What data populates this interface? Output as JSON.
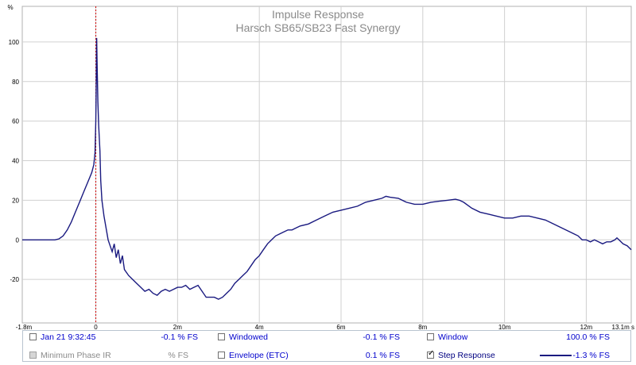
{
  "chart_data": {
    "type": "line",
    "title": "Impulse Response",
    "subtitle": "Harsch SB65/SB23 Fast Synergy",
    "ylabel": "%",
    "xlim": [
      -1.8,
      13.1
    ],
    "ylim": [
      -42,
      118
    ],
    "x_ticks": [
      "-1.8m",
      "0",
      "2m",
      "4m",
      "6m",
      "8m",
      "10m",
      "12m",
      "13.1m s"
    ],
    "x_tick_values": [
      -1.8,
      0,
      2,
      4,
      6,
      8,
      10,
      12,
      13.1
    ],
    "y_ticks": [
      "100",
      "80",
      "60",
      "40",
      "20",
      "0",
      "-20"
    ],
    "y_tick_values": [
      100,
      80,
      60,
      40,
      20,
      0,
      -20
    ],
    "grid": true,
    "marker_x": 0,
    "series": [
      {
        "color": "#1a1a80",
        "points": [
          [
            -1.8,
            0
          ],
          [
            -1.0,
            0
          ],
          [
            -0.9,
            0.5
          ],
          [
            -0.8,
            2
          ],
          [
            -0.7,
            5
          ],
          [
            -0.6,
            9
          ],
          [
            -0.5,
            14
          ],
          [
            -0.4,
            19
          ],
          [
            -0.3,
            24
          ],
          [
            -0.2,
            29
          ],
          [
            -0.1,
            34
          ],
          [
            -0.05,
            38
          ],
          [
            -0.02,
            44
          ],
          [
            0.0,
            60
          ],
          [
            0.01,
            80
          ],
          [
            0.02,
            102
          ],
          [
            0.03,
            90
          ],
          [
            0.05,
            70
          ],
          [
            0.07,
            58
          ],
          [
            0.1,
            45
          ],
          [
            0.12,
            30
          ],
          [
            0.15,
            20
          ],
          [
            0.2,
            12
          ],
          [
            0.25,
            6
          ],
          [
            0.3,
            0
          ],
          [
            0.35,
            -3
          ],
          [
            0.4,
            -6
          ],
          [
            0.45,
            -2
          ],
          [
            0.5,
            -9
          ],
          [
            0.55,
            -5
          ],
          [
            0.6,
            -12
          ],
          [
            0.65,
            -8
          ],
          [
            0.7,
            -15
          ],
          [
            0.8,
            -18
          ],
          [
            0.9,
            -20
          ],
          [
            1.0,
            -22
          ],
          [
            1.1,
            -24
          ],
          [
            1.2,
            -26
          ],
          [
            1.3,
            -25
          ],
          [
            1.4,
            -27
          ],
          [
            1.5,
            -28
          ],
          [
            1.6,
            -26
          ],
          [
            1.7,
            -25
          ],
          [
            1.8,
            -26
          ],
          [
            1.9,
            -25
          ],
          [
            2.0,
            -24
          ],
          [
            2.1,
            -24
          ],
          [
            2.2,
            -23
          ],
          [
            2.3,
            -25
          ],
          [
            2.4,
            -24
          ],
          [
            2.5,
            -23
          ],
          [
            2.6,
            -26
          ],
          [
            2.7,
            -29
          ],
          [
            2.8,
            -29
          ],
          [
            2.9,
            -29
          ],
          [
            3.0,
            -30
          ],
          [
            3.1,
            -29
          ],
          [
            3.2,
            -27
          ],
          [
            3.3,
            -25
          ],
          [
            3.4,
            -22
          ],
          [
            3.5,
            -20
          ],
          [
            3.6,
            -18
          ],
          [
            3.7,
            -16
          ],
          [
            3.8,
            -13
          ],
          [
            3.9,
            -10
          ],
          [
            4.0,
            -8
          ],
          [
            4.1,
            -5
          ],
          [
            4.2,
            -2
          ],
          [
            4.3,
            0
          ],
          [
            4.4,
            2
          ],
          [
            4.5,
            3
          ],
          [
            4.6,
            4
          ],
          [
            4.7,
            5
          ],
          [
            4.8,
            5
          ],
          [
            4.9,
            6
          ],
          [
            5.0,
            7
          ],
          [
            5.2,
            8
          ],
          [
            5.4,
            10
          ],
          [
            5.6,
            12
          ],
          [
            5.8,
            14
          ],
          [
            6.0,
            15
          ],
          [
            6.2,
            16
          ],
          [
            6.4,
            17
          ],
          [
            6.6,
            19
          ],
          [
            6.8,
            20
          ],
          [
            7.0,
            21
          ],
          [
            7.1,
            22
          ],
          [
            7.2,
            21.5
          ],
          [
            7.4,
            21
          ],
          [
            7.6,
            19
          ],
          [
            7.8,
            18
          ],
          [
            8.0,
            18
          ],
          [
            8.2,
            19
          ],
          [
            8.4,
            19.5
          ],
          [
            8.6,
            20
          ],
          [
            8.8,
            20.5
          ],
          [
            8.9,
            20
          ],
          [
            9.0,
            19
          ],
          [
            9.2,
            16
          ],
          [
            9.4,
            14
          ],
          [
            9.6,
            13
          ],
          [
            9.8,
            12
          ],
          [
            10.0,
            11
          ],
          [
            10.2,
            11
          ],
          [
            10.4,
            12
          ],
          [
            10.6,
            12
          ],
          [
            10.8,
            11
          ],
          [
            11.0,
            10
          ],
          [
            11.2,
            8
          ],
          [
            11.4,
            6
          ],
          [
            11.6,
            4
          ],
          [
            11.7,
            3
          ],
          [
            11.8,
            2
          ],
          [
            11.9,
            0
          ],
          [
            12.0,
            0
          ],
          [
            12.1,
            -1
          ],
          [
            12.2,
            0
          ],
          [
            12.3,
            -1
          ],
          [
            12.4,
            -2
          ],
          [
            12.5,
            -1
          ],
          [
            12.6,
            -1
          ],
          [
            12.7,
            0
          ],
          [
            12.75,
            1
          ],
          [
            12.8,
            0
          ],
          [
            12.9,
            -2
          ],
          [
            13.0,
            -3
          ],
          [
            13.1,
            -5
          ]
        ]
      }
    ]
  },
  "legend": {
    "rows": [
      [
        {
          "label": "Jan 21 9:32:45",
          "value": "-0.1 % FS",
          "checked": false,
          "disabled": false
        },
        {
          "label": "Windowed",
          "value": "-0.1 % FS",
          "checked": false,
          "disabled": false
        },
        {
          "label": "Window",
          "value": "100.0 % FS",
          "checked": false,
          "disabled": false
        }
      ],
      [
        {
          "label": "Minimum Phase IR",
          "value": "% FS",
          "checked": false,
          "disabled": true
        },
        {
          "label": "Envelope (ETC)",
          "value": "0.1 % FS",
          "checked": false,
          "disabled": false
        },
        {
          "label": "Step Response",
          "value": "-1.3 % FS",
          "checked": true,
          "disabled": false
        }
      ]
    ]
  }
}
